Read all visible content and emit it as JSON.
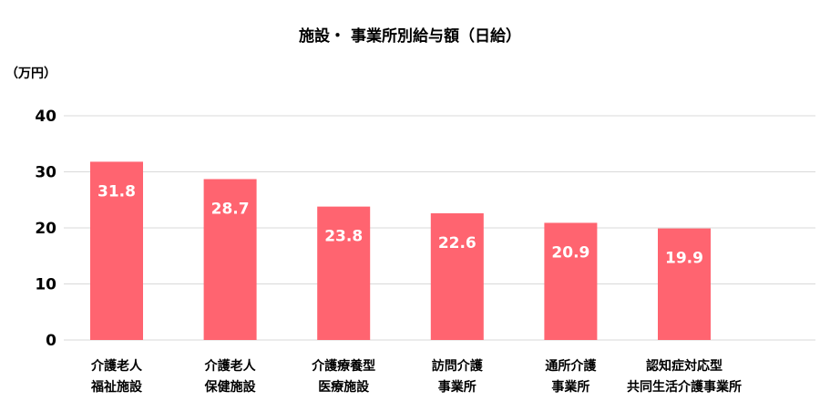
{
  "chart_data": {
    "type": "bar",
    "title": "施設・ 事業所別給与額（日給）",
    "unit_label": "（万円）",
    "ylim": [
      0,
      40
    ],
    "yticks": [
      "0",
      "10",
      "20",
      "30",
      "40"
    ],
    "grid": true,
    "categories": [
      [
        "介護老人",
        "福祉施設"
      ],
      [
        "介護老人",
        "保健施設"
      ],
      [
        "介護療養型",
        "医療施設"
      ],
      [
        "訪問介護",
        "事業所"
      ],
      [
        "通所介護",
        "事業所"
      ],
      [
        "認知症対応型",
        "共同生活介護事業所"
      ]
    ],
    "values": [
      31.8,
      28.7,
      23.8,
      22.6,
      20.9,
      19.9
    ],
    "value_labels": [
      "31.8",
      "28.7",
      "23.8",
      "22.6",
      "20.9",
      "19.9"
    ],
    "bar_color": "#ff6470",
    "grid_color": "#d9d9d9"
  }
}
